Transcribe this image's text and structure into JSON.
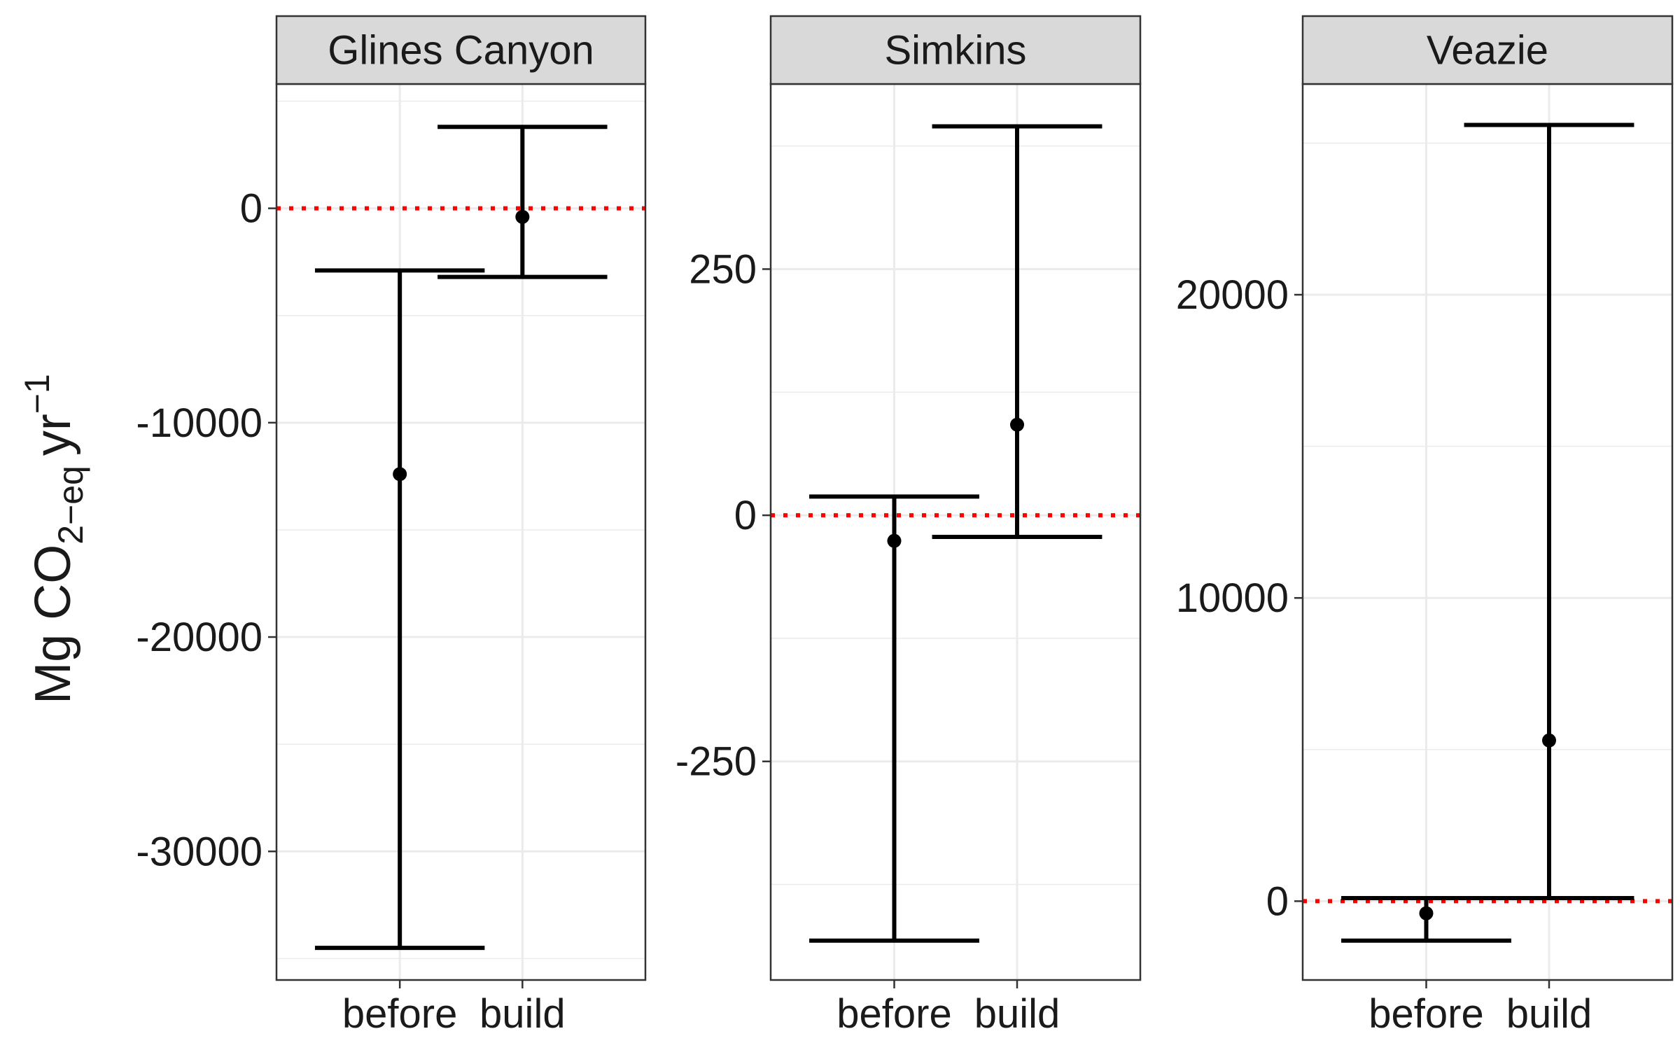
{
  "chart_data": {
    "type": "errorbar",
    "ylabel_main": "Mg CO",
    "ylabel_sub": "2−eq",
    "ylabel_unit": "yr",
    "ylabel_sup": "−1",
    "categories": [
      "before",
      "build"
    ],
    "reference_line": {
      "y": 0,
      "color": "#ff0000",
      "style": "dotted"
    },
    "panels": [
      {
        "name": "Glines Canyon",
        "ylim": [
          -36000,
          5800
        ],
        "yticks": [
          0,
          -10000,
          -20000,
          -30000
        ],
        "ytick_labels": [
          "0",
          "-10000",
          "-20000",
          "-30000"
        ],
        "points": [
          {
            "x": "before",
            "y": -12400,
            "lower": -34500,
            "upper": -2900
          },
          {
            "x": "build",
            "y": -400,
            "lower": -3200,
            "upper": 3800
          }
        ]
      },
      {
        "name": "Simkins",
        "ylim": [
          -472,
          438
        ],
        "yticks": [
          250,
          0,
          -250
        ],
        "ytick_labels": [
          "250",
          "0",
          "-250"
        ],
        "points": [
          {
            "x": "before",
            "y": -26,
            "lower": -432,
            "upper": 19
          },
          {
            "x": "build",
            "y": 92,
            "lower": -22,
            "upper": 395
          }
        ]
      },
      {
        "name": "Veazie",
        "ylim": [
          -2600,
          26950
        ],
        "yticks": [
          20000,
          10000,
          0
        ],
        "ytick_labels": [
          "20000",
          "10000",
          "0"
        ],
        "points": [
          {
            "x": "before",
            "y": -400,
            "lower": -1300,
            "upper": 100
          },
          {
            "x": "build",
            "y": 5300,
            "lower": 100,
            "upper": 25600
          }
        ]
      }
    ],
    "grid": true,
    "colors": {
      "strip_fill": "#d9d9d9",
      "panel_border": "#333333",
      "grid": "#ebebeb",
      "marks": "#000000",
      "reference": "#ff0000"
    }
  }
}
